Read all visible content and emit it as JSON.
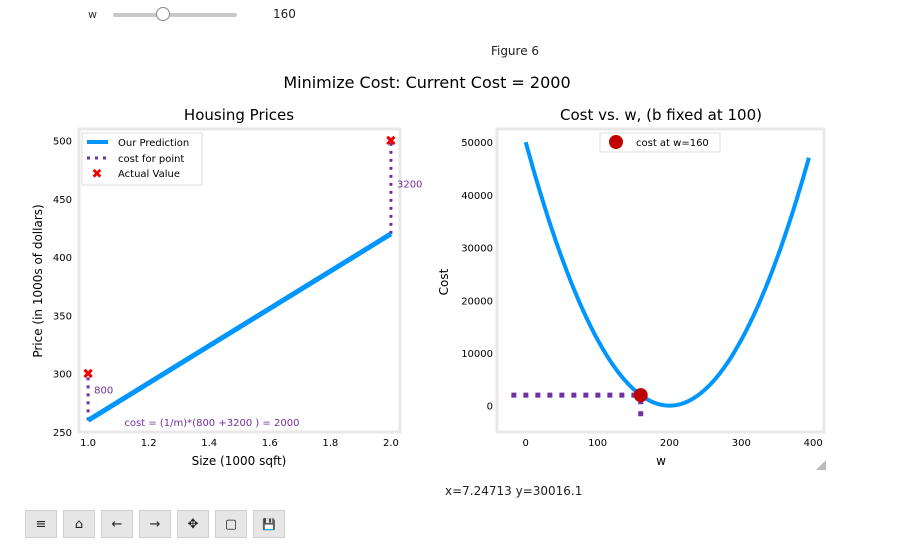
{
  "slider": {
    "label": "w",
    "value": "160",
    "min": 0,
    "max": 400,
    "fraction": 0.4
  },
  "figure": {
    "label": "Figure 6",
    "suptitle": "Minimize Cost: Current Cost = 2000"
  },
  "status": {
    "coords": "x=7.24713 y=30016.1"
  },
  "toolbar": [
    {
      "name": "menu",
      "glyph": "≡"
    },
    {
      "name": "home",
      "glyph": "⌂"
    },
    {
      "name": "back",
      "glyph": "←"
    },
    {
      "name": "forward",
      "glyph": "→"
    },
    {
      "name": "pan",
      "glyph": "✥"
    },
    {
      "name": "zoom",
      "glyph": "▢"
    },
    {
      "name": "download",
      "glyph": "💾"
    }
  ],
  "colors": {
    "blue": "#0096ff",
    "purple": "#7030a0",
    "red": "#c00000",
    "frame": "#e8e8e8"
  },
  "chart_data": [
    {
      "type": "line",
      "title": "Housing Prices",
      "xlabel": "Size (1000 sqft)",
      "ylabel": "Price (in 1000s of dollars)",
      "xlim": [
        0.97,
        2.03
      ],
      "ylim": [
        250,
        510
      ],
      "xticks": [
        "1.0",
        "1.2",
        "1.4",
        "1.6",
        "1.8",
        "2.0"
      ],
      "xtick_values": [
        1.0,
        1.2,
        1.4,
        1.6,
        1.8,
        2.0
      ],
      "yticks": [
        "250",
        "300",
        "350",
        "400",
        "450",
        "500"
      ],
      "ytick_values": [
        250,
        300,
        350,
        400,
        450,
        500
      ],
      "grid": false,
      "legend": "top-left",
      "series": [
        {
          "name": "Our Prediction",
          "x": [
            1.0,
            2.0
          ],
          "y": [
            260,
            420
          ]
        },
        {
          "name": "cost for point",
          "segments": [
            {
              "x": 1.0,
              "y0": 260,
              "y1": 300
            },
            {
              "x": 2.0,
              "y0": 420,
              "y1": 500
            }
          ]
        },
        {
          "name": "Actual Value",
          "x": [
            1.0,
            2.0
          ],
          "y": [
            300,
            500
          ]
        }
      ],
      "annotations": [
        {
          "text": "800",
          "x": 1.02,
          "y": 283
        },
        {
          "text": "3200",
          "x": 2.02,
          "y": 460
        },
        {
          "text": "cost = (1/m)*(800 +3200 ) = 2000",
          "x": 1.12,
          "y": 255
        }
      ]
    },
    {
      "type": "line",
      "title": "Cost vs. w, (b fixed at 100)",
      "xlabel": "w",
      "ylabel": "Cost",
      "xlim": [
        -40,
        415
      ],
      "ylim": [
        -5000,
        52500
      ],
      "xticks": [
        "0",
        "100",
        "200",
        "300",
        "400"
      ],
      "xtick_values": [
        0,
        100,
        200,
        300,
        400
      ],
      "yticks": [
        "0",
        "10000",
        "20000",
        "30000",
        "40000",
        "50000"
      ],
      "ytick_values": [
        0,
        10000,
        20000,
        30000,
        40000,
        50000
      ],
      "grid": false,
      "legend": "top-center",
      "curve": {
        "name": "cost",
        "w_min": 0,
        "w_max": 395,
        "formula": "1.25*(w-200)^2",
        "x_peak_left": 0,
        "y_at_0": 50000
      },
      "marker": {
        "name": "cost at w=160",
        "x": 160,
        "y": 2000
      },
      "guides": {
        "horizontal": {
          "x0": -20,
          "x1": 160,
          "y": 2000
        },
        "vertical": {
          "x": 160,
          "y0": -2000,
          "y1": 2000
        }
      }
    }
  ]
}
